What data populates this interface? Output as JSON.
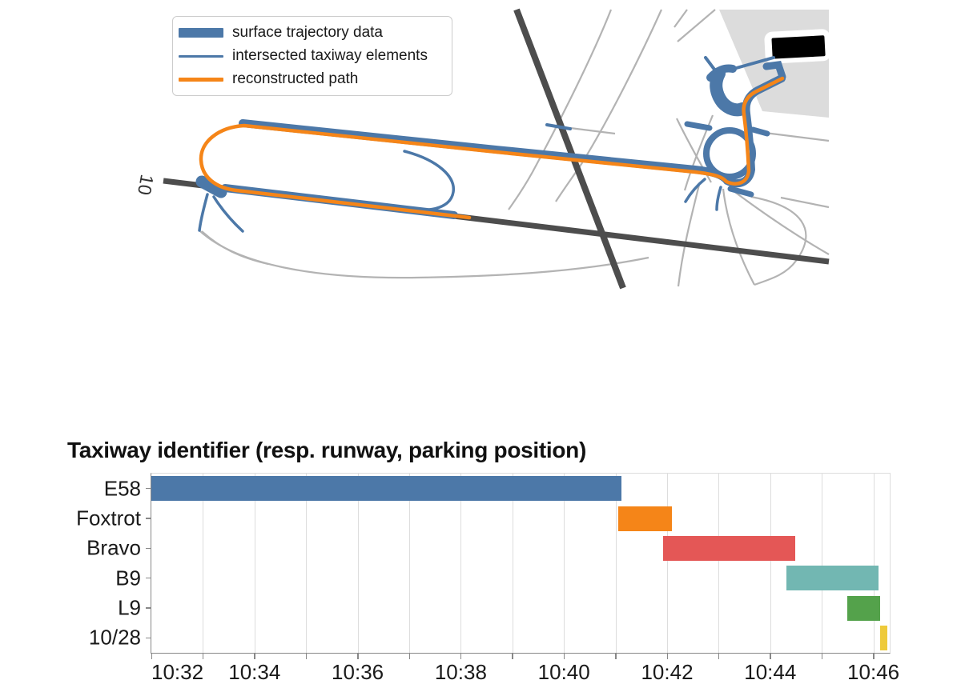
{
  "map": {
    "runway_label": "10",
    "legend": {
      "items": [
        {
          "label": "surface trajectory data",
          "swatch": "thick-line",
          "color": "#4C78A8"
        },
        {
          "label": "intersected taxiway elements",
          "swatch": "thin-line",
          "color": "#4C78A8"
        },
        {
          "label": "reconstructed path",
          "swatch": "medium-line",
          "color": "#F58518"
        }
      ]
    },
    "colors": {
      "trajectory": "#4C78A8",
      "reconstructed_path": "#F58518",
      "runway": "#4d4d4d",
      "taxiway_network": "#b3b3b3",
      "apron": "#dcdcdc",
      "building": "#000000",
      "runway_label_color": "#333333"
    }
  },
  "chart_data": {
    "type": "gantt",
    "title": "Taxiway identifier (resp. runway, parking position)",
    "xlabel": "",
    "ylabel": "",
    "legend_position": "none",
    "grid": "vertical, 1-minute interval",
    "axis": {
      "min": "10:32:00",
      "max": "10:46:19",
      "tick_interval_seconds": 60,
      "label_interval_seconds": 120,
      "tick_labels": [
        "10:32",
        "10:34",
        "10:36",
        "10:38",
        "10:40",
        "10:42",
        "10:44",
        "10:46"
      ],
      "first_label_flush_left": true
    },
    "rows": [
      {
        "label": "E58",
        "start": "10:32:00",
        "end": "10:41:07",
        "color": "#4C78A8"
      },
      {
        "label": "Foxtrot",
        "start": "10:41:03",
        "end": "10:42:06",
        "color": "#F58518"
      },
      {
        "label": "Bravo",
        "start": "10:41:55",
        "end": "10:44:29",
        "color": "#E45756"
      },
      {
        "label": "B9",
        "start": "10:44:19",
        "end": "10:46:06",
        "color": "#72B7B2"
      },
      {
        "label": "L9",
        "start": "10:45:30",
        "end": "10:46:08",
        "color": "#54A24B"
      },
      {
        "label": "10/28",
        "start": "10:46:08",
        "end": "10:46:16",
        "color": "#EECA3B"
      }
    ]
  }
}
